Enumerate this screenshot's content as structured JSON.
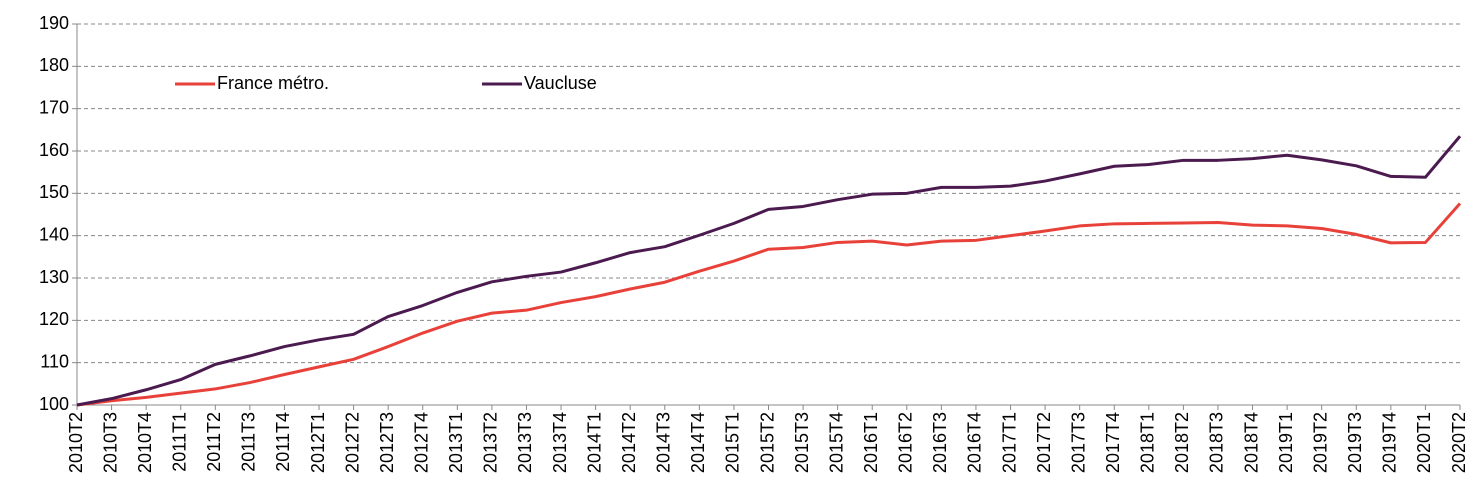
{
  "chart_data": {
    "type": "line",
    "categories": [
      "2010T2",
      "2010T3",
      "2010T4",
      "2011T1",
      "2011T2",
      "2011T3",
      "2011T4",
      "2012T1",
      "2012T2",
      "2012T3",
      "2012T4",
      "2013T1",
      "2013T2",
      "2013T3",
      "2013T4",
      "2014T1",
      "2014T2",
      "2014T3",
      "2014T4",
      "2015T1",
      "2015T2",
      "2015T3",
      "2015T4",
      "2016T1",
      "2016T2",
      "2016T3",
      "2016T4",
      "2017T1",
      "2017T2",
      "2017T3",
      "2017T4",
      "2018T1",
      "2018T2",
      "2018T3",
      "2018T4",
      "2019T1",
      "2019T2",
      "2019T3",
      "2019T4",
      "2020T1",
      "2020T2"
    ],
    "series": [
      {
        "name": "France métro.",
        "color": "#e8413a",
        "values": [
          100,
          101,
          101.8,
          102.8,
          103.8,
          105.3,
          107.2,
          109,
          110.8,
          113.8,
          117,
          119.8,
          121.7,
          122.4,
          124.2,
          125.6,
          127.4,
          129,
          131.6,
          134,
          136.8,
          137.2,
          138.4,
          138.7,
          137.8,
          138.7,
          138.9,
          140,
          141.1,
          142.3,
          142.8,
          142.9,
          143,
          143.1,
          142.5,
          142.3,
          141.7,
          140.3,
          138.3,
          138.4,
          147.6
        ]
      },
      {
        "name": "Vaucluse",
        "color": "#4b1a4f",
        "values": [
          100,
          101.5,
          103.6,
          106,
          109.6,
          111.6,
          113.8,
          115.4,
          116.7,
          120.9,
          123.5,
          126.6,
          129.1,
          130.4,
          131.4,
          133.6,
          136,
          137.4,
          140.1,
          142.9,
          146.2,
          146.9,
          148.5,
          149.8,
          150,
          151.4,
          151.4,
          151.7,
          152.9,
          154.6,
          156.4,
          156.8,
          157.8,
          157.8,
          158.2,
          159,
          157.9,
          156.5,
          154,
          153.8,
          163.5
        ]
      }
    ],
    "ylim": [
      100,
      190
    ],
    "yticks": [
      100,
      110,
      120,
      130,
      140,
      150,
      160,
      170,
      180,
      190
    ],
    "grid": true,
    "legend": "top-left"
  }
}
